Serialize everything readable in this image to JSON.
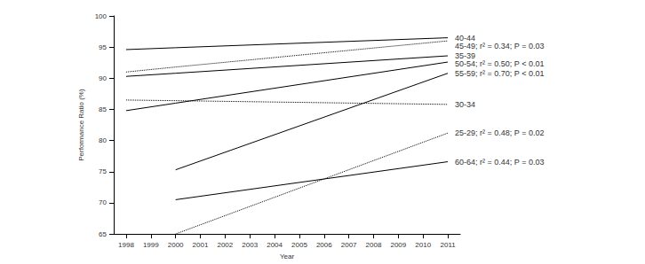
{
  "chart_data": {
    "type": "line",
    "x_label": "Year",
    "y_label": "Performance Ratio (%)",
    "x": [
      1998,
      2000,
      2011
    ],
    "xlim": [
      1997.5,
      2011.5
    ],
    "xticks": [
      1998,
      1999,
      2000,
      2001,
      2002,
      2003,
      2004,
      2005,
      2006,
      2007,
      2008,
      2009,
      2010,
      2011
    ],
    "ylim": [
      65,
      100
    ],
    "yticks": [
      65,
      70,
      75,
      80,
      85,
      90,
      95,
      100
    ],
    "grid": false,
    "series": [
      {
        "name": "40-44",
        "color": "#000000",
        "line_style": "solid",
        "values": [
          94.6,
          94.9,
          96.5
        ]
      },
      {
        "name": "45-49; r² = 0.34; P = 0.03",
        "color": "#000000",
        "line_style": "dotted",
        "values": [
          91.0,
          91.8,
          96.0
        ]
      },
      {
        "name": "35-39",
        "color": "#000000",
        "line_style": "solid",
        "values": [
          90.3,
          90.8,
          93.6
        ]
      },
      {
        "name": "50-54; r² = 0.50; P < 0.01",
        "color": "#000000",
        "line_style": "solid",
        "values": [
          84.8,
          86.0,
          92.6
        ]
      },
      {
        "name": "55-59; r² = 0.70; P < 0.01",
        "color": "#000000",
        "line_style": "solid",
        "values": [
          null,
          75.3,
          90.8
        ]
      },
      {
        "name": "30-34",
        "color": "#000000",
        "line_style": "dotted",
        "values": [
          86.5,
          86.4,
          85.8
        ]
      },
      {
        "name": "25-29; r² = 0.48; P = 0.02",
        "color": "#000000",
        "line_style": "dotted",
        "values": [
          null,
          65.0,
          81.2
        ]
      },
      {
        "name": "60-64; r² = 0.44; P = 0.03",
        "color": "#000000",
        "line_style": "solid",
        "values": [
          null,
          70.5,
          76.6
        ]
      }
    ]
  }
}
